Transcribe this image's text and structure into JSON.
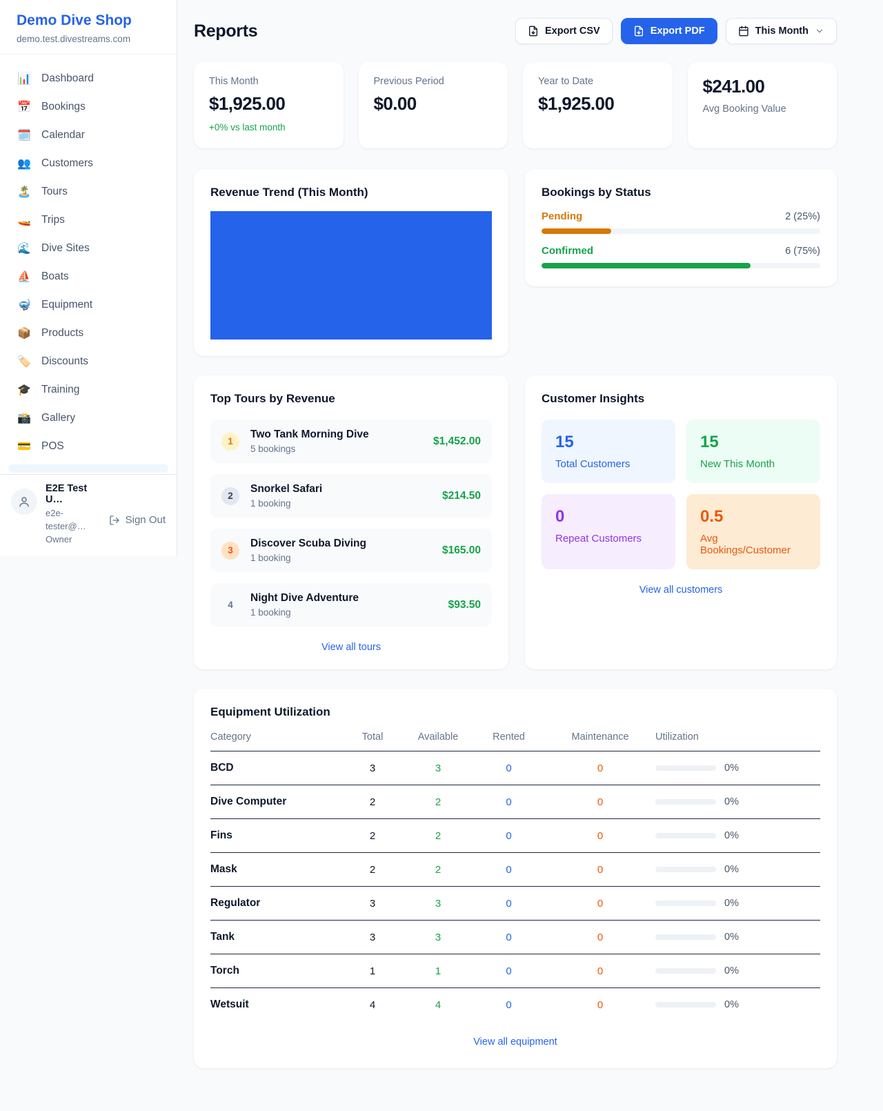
{
  "palette": {
    "accent_blue": "#2563eb",
    "green": "#16a34a",
    "pending_orange": "#d97706",
    "maintenance_orange": "#ea580c",
    "purple": "#9333ea",
    "text_dark": "#0f172a",
    "text_gray": "#64748b"
  },
  "sidebar": {
    "brand": "Demo Dive Shop",
    "domain": "demo.test.divestreams.com",
    "items": [
      {
        "label": "Dashboard",
        "icon": "📊"
      },
      {
        "label": "Bookings",
        "icon": "📅"
      },
      {
        "label": "Calendar",
        "icon": "🗓️"
      },
      {
        "label": "Customers",
        "icon": "👥"
      },
      {
        "label": "Tours",
        "icon": "🏝️"
      },
      {
        "label": "Trips",
        "icon": "🚤"
      },
      {
        "label": "Dive Sites",
        "icon": "🌊"
      },
      {
        "label": "Boats",
        "icon": "⛵"
      },
      {
        "label": "Equipment",
        "icon": "🤿"
      },
      {
        "label": "Products",
        "icon": "📦"
      },
      {
        "label": "Discounts",
        "icon": "🏷️"
      },
      {
        "label": "Training",
        "icon": "🎓"
      },
      {
        "label": "Gallery",
        "icon": "📸"
      },
      {
        "label": "POS",
        "icon": "💳"
      }
    ],
    "user": {
      "name": "E2E Test U…",
      "email": "e2e-tester@…",
      "role": "Owner",
      "sign_out": "Sign Out"
    }
  },
  "header": {
    "title": "Reports",
    "export_csv": "Export CSV",
    "export_pdf": "Export PDF",
    "period": "This Month"
  },
  "stats": [
    {
      "label": "This Month",
      "value": "$1,925.00",
      "delta": "+0% vs last month"
    },
    {
      "label": "Previous Period",
      "value": "$0.00"
    },
    {
      "label": "Year to Date",
      "value": "$1,925.00"
    },
    {
      "label": "Avg Booking Value",
      "value": "$241.00",
      "value_first": true
    }
  ],
  "revenue_trend": {
    "title": "Revenue Trend (This Month)",
    "bar_color": "#2563eb"
  },
  "bookings_by_status": {
    "title": "Bookings by Status",
    "rows": [
      {
        "label": "Pending",
        "value": "2 (25%)",
        "pct": 25,
        "color": "#d97706"
      },
      {
        "label": "Confirmed",
        "value": "6 (75%)",
        "pct": 75,
        "color": "#16a34a"
      }
    ]
  },
  "top_tours": {
    "title": "Top Tours by Revenue",
    "view_all": "View all tours",
    "rows": [
      {
        "rank": "1",
        "name": "Two Tank Morning Dive",
        "bookings": "5 bookings",
        "amount": "$1,452.00",
        "badge_bg": "#fef3c7",
        "badge_fg": "#d97706"
      },
      {
        "rank": "2",
        "name": "Snorkel Safari",
        "bookings": "1 booking",
        "amount": "$214.50",
        "badge_bg": "#e2e8f0",
        "badge_fg": "#334155"
      },
      {
        "rank": "3",
        "name": "Discover Scuba Diving",
        "bookings": "1 booking",
        "amount": "$165.00",
        "badge_bg": "#ffe1c4",
        "badge_fg": "#ea580c"
      },
      {
        "rank": "4",
        "name": "Night Dive Adventure",
        "bookings": "1 booking",
        "amount": "$93.50",
        "badge_bg": "transparent",
        "badge_fg": "#64748b"
      }
    ]
  },
  "customer_insights": {
    "title": "Customer Insights",
    "view_all": "View all customers",
    "tiles": [
      {
        "value": "15",
        "label": "Total Customers",
        "bg": "#eff6ff",
        "fg": "#2563eb"
      },
      {
        "value": "15",
        "label": "New This Month",
        "bg": "#ecfdf5",
        "fg": "#16a34a"
      },
      {
        "value": "0",
        "label": "Repeat Customers",
        "bg": "#f6eefe",
        "fg": "#9333ea"
      },
      {
        "value": "0.5",
        "label": "Avg Bookings/Customer",
        "bg": "#fdebd3",
        "fg": "#ea580c"
      }
    ]
  },
  "equipment": {
    "title": "Equipment Utilization",
    "view_all": "View all equipment",
    "columns": [
      "Category",
      "Total",
      "Available",
      "Rented",
      "Maintenance",
      "Utilization"
    ],
    "rows": [
      {
        "category": "BCD",
        "total": "3",
        "available": "3",
        "rented": "0",
        "maintenance": "0",
        "utilization": "0%",
        "utilization_pct": 0
      },
      {
        "category": "Dive Computer",
        "total": "2",
        "available": "2",
        "rented": "0",
        "maintenance": "0",
        "utilization": "0%",
        "utilization_pct": 0
      },
      {
        "category": "Fins",
        "total": "2",
        "available": "2",
        "rented": "0",
        "maintenance": "0",
        "utilization": "0%",
        "utilization_pct": 0
      },
      {
        "category": "Mask",
        "total": "2",
        "available": "2",
        "rented": "0",
        "maintenance": "0",
        "utilization": "0%",
        "utilization_pct": 0
      },
      {
        "category": "Regulator",
        "total": "3",
        "available": "3",
        "rented": "0",
        "maintenance": "0",
        "utilization": "0%",
        "utilization_pct": 0
      },
      {
        "category": "Tank",
        "total": "3",
        "available": "3",
        "rented": "0",
        "maintenance": "0",
        "utilization": "0%",
        "utilization_pct": 0
      },
      {
        "category": "Torch",
        "total": "1",
        "available": "1",
        "rented": "0",
        "maintenance": "0",
        "utilization": "0%",
        "utilization_pct": 0
      },
      {
        "category": "Wetsuit",
        "total": "4",
        "available": "4",
        "rented": "0",
        "maintenance": "0",
        "utilization": "0%",
        "utilization_pct": 0
      }
    ]
  }
}
